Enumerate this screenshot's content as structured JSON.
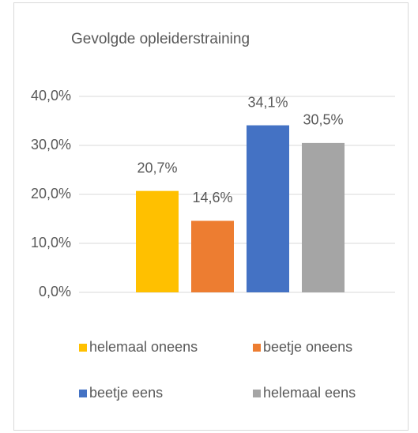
{
  "chart_data": {
    "type": "bar",
    "title": "Gevolgde opleiderstraining",
    "categories": [
      null
    ],
    "series": [
      {
        "name": "helemaal oneens",
        "color": "#ffc000",
        "values": [
          20.7
        ],
        "value_labels": [
          "20,7%"
        ]
      },
      {
        "name": "beetje oneens",
        "color": "#ed7d31",
        "values": [
          14.6
        ],
        "value_labels": [
          "14,6%"
        ]
      },
      {
        "name": "beetje eens",
        "color": "#4472c4",
        "values": [
          34.1
        ],
        "value_labels": [
          "34,1%"
        ]
      },
      {
        "name": "helemaal eens",
        "color": "#a5a5a5",
        "values": [
          30.5
        ],
        "value_labels": [
          "30,5%"
        ]
      }
    ],
    "ylim": [
      0,
      40
    ],
    "yticks": [
      {
        "value": 0,
        "label": "0,0%"
      },
      {
        "value": 10,
        "label": "10,0%"
      },
      {
        "value": 20,
        "label": "20,0%"
      },
      {
        "value": 30,
        "label": "30,0%"
      },
      {
        "value": 40,
        "label": "40,0%"
      }
    ],
    "grid": true,
    "legend": "bottom"
  }
}
